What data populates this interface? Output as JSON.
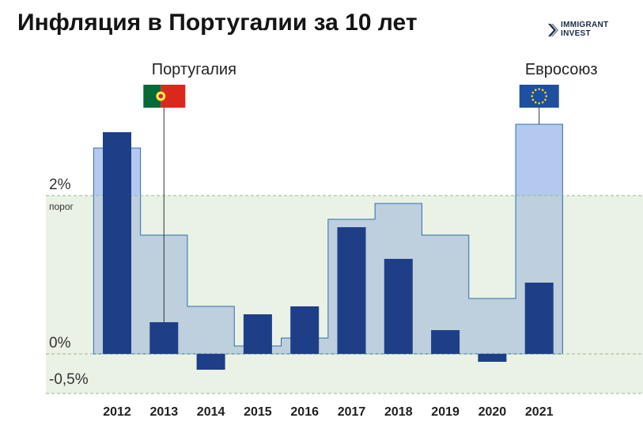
{
  "title": "Инфляция в Португалии за 10 лет",
  "brand": {
    "line1": "IMMIGRANT",
    "line2": "INVEST"
  },
  "chart_data": {
    "type": "bar",
    "categories": [
      "2012",
      "2013",
      "2014",
      "2015",
      "2016",
      "2017",
      "2018",
      "2019",
      "2020",
      "2021"
    ],
    "series": [
      {
        "name": "Португалия",
        "values": [
          2.8,
          0.4,
          -0.2,
          0.5,
          0.6,
          1.6,
          1.2,
          0.3,
          -0.1,
          0.9
        ],
        "color": "#1e3f88"
      },
      {
        "name": "Евросоюз",
        "values": [
          2.6,
          1.5,
          0.6,
          0.1,
          0.2,
          1.7,
          1.9,
          1.5,
          0.7,
          2.9
        ],
        "color": "#b6c9dc"
      }
    ],
    "ylim": [
      -0.5,
      3.2
    ],
    "yticks": [
      {
        "value": 2,
        "label": "2%"
      },
      {
        "value": 0,
        "label": "0%"
      },
      {
        "value": -0.5,
        "label": "-0,5%"
      }
    ],
    "threshold": {
      "value": 2,
      "label": "порог",
      "band_color": "#e9f2e4"
    },
    "highlight_color": "#b4c9ee"
  }
}
